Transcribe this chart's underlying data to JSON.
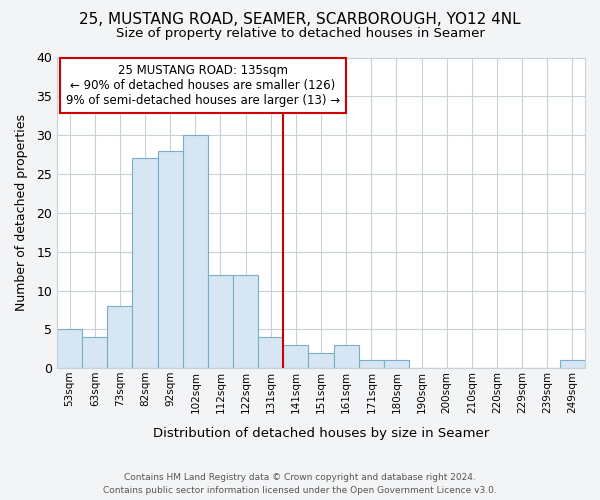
{
  "title": "25, MUSTANG ROAD, SEAMER, SCARBOROUGH, YO12 4NL",
  "subtitle": "Size of property relative to detached houses in Seamer",
  "xlabel": "Distribution of detached houses by size in Seamer",
  "ylabel": "Number of detached properties",
  "bar_labels": [
    "53sqm",
    "63sqm",
    "73sqm",
    "82sqm",
    "92sqm",
    "102sqm",
    "112sqm",
    "122sqm",
    "131sqm",
    "141sqm",
    "151sqm",
    "161sqm",
    "171sqm",
    "180sqm",
    "190sqm",
    "200sqm",
    "210sqm",
    "220sqm",
    "229sqm",
    "239sqm",
    "249sqm"
  ],
  "bar_heights": [
    5,
    4,
    8,
    27,
    28,
    30,
    12,
    12,
    4,
    3,
    2,
    3,
    1,
    1,
    0,
    0,
    0,
    0,
    0,
    0,
    1
  ],
  "bar_color": "#d6e6f2",
  "bar_edge_color": "#7aaec8",
  "vline_color": "#cc0000",
  "ylim": [
    0,
    40
  ],
  "yticks": [
    0,
    5,
    10,
    15,
    20,
    25,
    30,
    35,
    40
  ],
  "annotation_title": "25 MUSTANG ROAD: 135sqm",
  "annotation_line1": "← 90% of detached houses are smaller (126)",
  "annotation_line2": "9% of semi-detached houses are larger (13) →",
  "footer1": "Contains HM Land Registry data © Crown copyright and database right 2024.",
  "footer2": "Contains public sector information licensed under the Open Government Licence v3.0.",
  "bg_color": "#f2f4f6",
  "plot_bg_color": "#ffffff",
  "grid_color": "#c8d0d8"
}
